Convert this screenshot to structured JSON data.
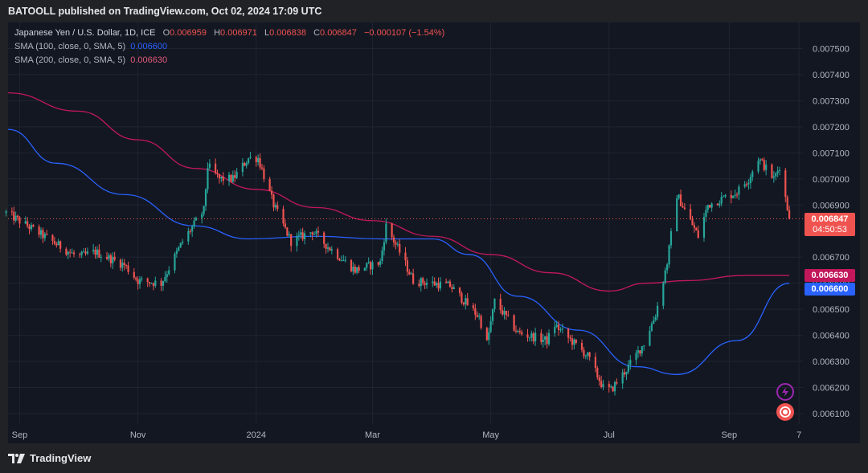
{
  "header": {
    "publisher_text": "BATOOLL published on TradingView.com, Oct 02, 2024 17:09 UTC"
  },
  "legend": {
    "symbol": "Japanese Yen / U.S. Dollar, 1D, ICE",
    "o_label": "O",
    "o_value": "0.006959",
    "h_label": "H",
    "h_value": "0.006971",
    "l_label": "L",
    "l_value": "0.006838",
    "c_label": "C",
    "c_value": "0.006847",
    "change": "−0.000107 (−1.54%)",
    "sma100_label": "SMA (100, close, 0, SMA, 5)",
    "sma100_value": "0.006600",
    "sma200_label": "SMA (200, close, 0, SMA, 5)",
    "sma200_value": "0.006630"
  },
  "price_tags": {
    "last_price": "0.006847",
    "countdown": "04:50:53",
    "sma200": "0.006630",
    "sma100": "0.006600"
  },
  "footer": {
    "brand": "TradingView"
  },
  "colors": {
    "background": "#131722",
    "up": "#26a69a",
    "down": "#ef5350",
    "sma100": "#2962ff",
    "sma200": "#c2185b",
    "grid": "#1f2430",
    "axis_text": "#b2b5be"
  },
  "icons": [
    "tradingview-logo-icon",
    "lightning-icon",
    "record-icon"
  ],
  "chart_data": {
    "type": "candlestick",
    "title": "Japanese Yen / U.S. Dollar, 1D, ICE",
    "y_axis": {
      "ticks": [
        "0.007500",
        "0.007400",
        "0.007300",
        "0.007200",
        "0.007100",
        "0.007000",
        "0.006900",
        "0.006700",
        "0.006600",
        "0.006500",
        "0.006400",
        "0.006300",
        "0.006200",
        "0.006100"
      ],
      "range": [
        0.00606,
        0.0076
      ]
    },
    "x_axis": {
      "ticks": [
        "Sep",
        "Nov",
        "2024",
        "Mar",
        "May",
        "Jul",
        "Sep",
        "7"
      ],
      "range": [
        "2023-08-26",
        "2024-10-09"
      ]
    },
    "grid": true,
    "anchors": [
      [
        "2023-08-25",
        0.00687
      ],
      [
        "2023-09-05",
        0.00682
      ],
      [
        "2023-09-20",
        0.00675
      ],
      [
        "2023-10-01",
        0.0067
      ],
      [
        "2023-10-10",
        0.00672
      ],
      [
        "2023-10-25",
        0.00667
      ],
      [
        "2023-11-01",
        0.00661
      ],
      [
        "2023-11-13",
        0.0066
      ],
      [
        "2023-11-24",
        0.00676
      ],
      [
        "2023-12-05",
        0.00688
      ],
      [
        "2023-12-07",
        0.00705
      ],
      [
        "2023-12-13",
        0.007
      ],
      [
        "2023-12-20",
        0.007
      ],
      [
        "2023-12-28",
        0.00708
      ],
      [
        "2024-01-02",
        0.00708
      ],
      [
        "2024-01-10",
        0.0069
      ],
      [
        "2024-01-19",
        0.00676
      ],
      [
        "2024-01-30",
        0.0068
      ],
      [
        "2024-02-07",
        0.00674
      ],
      [
        "2024-02-21",
        0.00665
      ],
      [
        "2024-03-05",
        0.00668
      ],
      [
        "2024-03-08",
        0.00682
      ],
      [
        "2024-03-15",
        0.00672
      ],
      [
        "2024-03-22",
        0.00661
      ],
      [
        "2024-04-10",
        0.00659
      ],
      [
        "2024-04-25",
        0.00647
      ],
      [
        "2024-04-29",
        0.00637
      ],
      [
        "2024-05-03",
        0.00653
      ],
      [
        "2024-05-15",
        0.00641
      ],
      [
        "2024-05-30",
        0.00638
      ],
      [
        "2024-06-03",
        0.00644
      ],
      [
        "2024-06-20",
        0.00632
      ],
      [
        "2024-06-28",
        0.0062
      ],
      [
        "2024-07-02",
        0.00619
      ],
      [
        "2024-07-11",
        0.00628
      ],
      [
        "2024-07-19",
        0.00637
      ],
      [
        "2024-07-25",
        0.00648
      ],
      [
        "2024-07-31",
        0.00668
      ],
      [
        "2024-08-05",
        0.00694
      ],
      [
        "2024-08-16",
        0.00678
      ],
      [
        "2024-08-21",
        0.0069
      ],
      [
        "2024-09-05",
        0.00695
      ],
      [
        "2024-09-11",
        0.007
      ],
      [
        "2024-09-16",
        0.00708
      ],
      [
        "2024-09-24",
        0.007
      ],
      [
        "2024-09-27",
        0.00705
      ],
      [
        "2024-10-02",
        0.006847
      ]
    ],
    "series": [
      {
        "name": "SMA (100, close, 0, SMA, 5)",
        "points": [
          [
            "2023-08-26",
            0.00719
          ],
          [
            "2023-09-20",
            0.00706
          ],
          [
            "2023-10-25",
            0.00694
          ],
          [
            "2023-11-30",
            0.00682
          ],
          [
            "2023-12-28",
            0.00677
          ],
          [
            "2024-02-01",
            0.00678
          ],
          [
            "2024-03-05",
            0.00677
          ],
          [
            "2024-04-01",
            0.00677
          ],
          [
            "2024-04-20",
            0.00671
          ],
          [
            "2024-05-15",
            0.00655
          ],
          [
            "2024-06-15",
            0.00642
          ],
          [
            "2024-07-15",
            0.00628
          ],
          [
            "2024-08-05",
            0.00625
          ],
          [
            "2024-09-05",
            0.00638
          ],
          [
            "2024-10-02",
            0.0066
          ]
        ]
      },
      {
        "name": "SMA (200, close, 0, SMA, 5)",
        "points": [
          [
            "2023-08-26",
            0.00733
          ],
          [
            "2023-10-01",
            0.00726
          ],
          [
            "2023-11-01",
            0.00715
          ],
          [
            "2023-12-01",
            0.00704
          ],
          [
            "2024-01-01",
            0.00696
          ],
          [
            "2024-02-01",
            0.00689
          ],
          [
            "2024-03-01",
            0.00684
          ],
          [
            "2024-04-01",
            0.00678
          ],
          [
            "2024-05-01",
            0.00671
          ],
          [
            "2024-06-01",
            0.00664
          ],
          [
            "2024-07-01",
            0.00657
          ],
          [
            "2024-07-20",
            0.0066
          ],
          [
            "2024-08-10",
            0.00661
          ],
          [
            "2024-09-10",
            0.00663
          ],
          [
            "2024-10-02",
            0.00663
          ]
        ]
      }
    ]
  }
}
